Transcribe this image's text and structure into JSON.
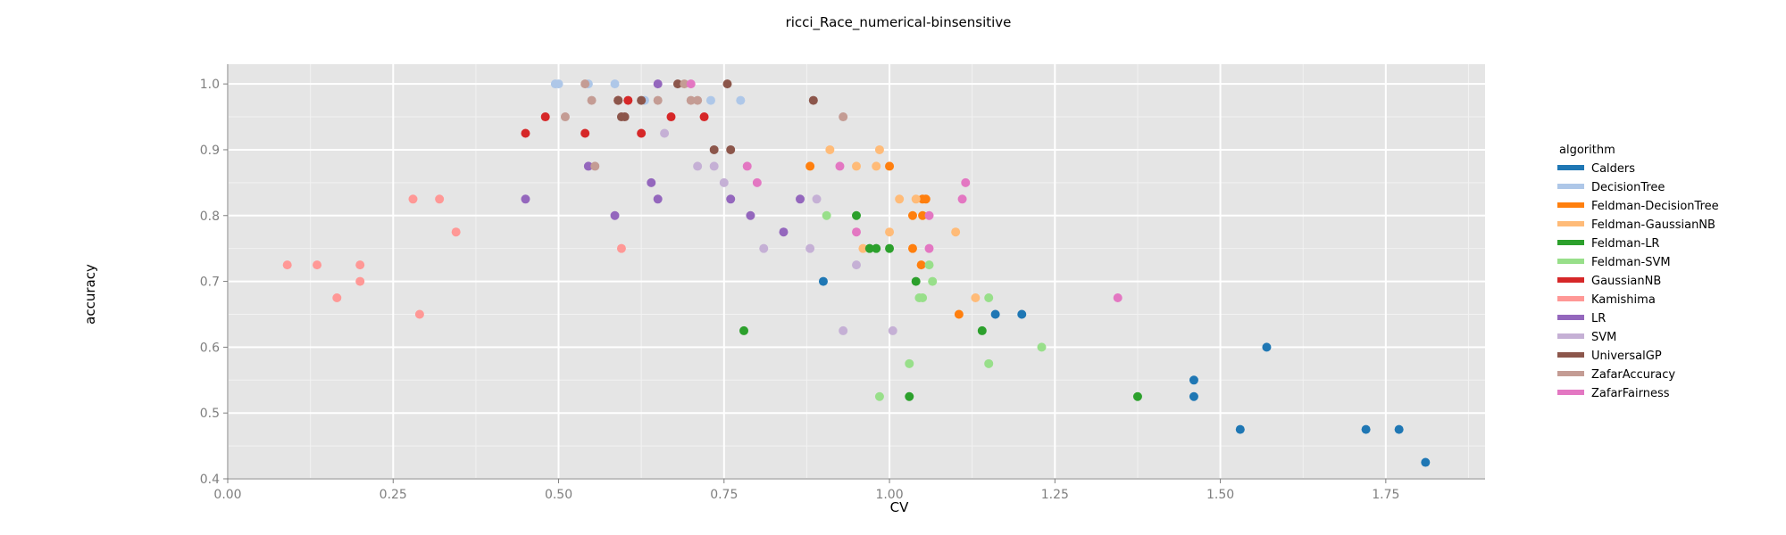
{
  "chart_data": {
    "type": "scatter",
    "title": "ricci_Race_numerical-binsensitive",
    "xlabel": "CV",
    "ylabel": "accuracy",
    "xlim": [
      0.0,
      1.9
    ],
    "ylim": [
      0.4,
      1.03
    ],
    "x_ticks": [
      "0.00",
      "0.25",
      "0.50",
      "0.75",
      "1.00",
      "1.25",
      "1.50",
      "1.75"
    ],
    "y_ticks": [
      "0.4",
      "0.5",
      "0.6",
      "0.7",
      "0.8",
      "0.9",
      "1.0"
    ],
    "grid": true,
    "legend_title": "algorithm",
    "legend_position": "right",
    "series": [
      {
        "name": "Calders",
        "color": "#1f77b4",
        "points": [
          [
            0.9,
            0.7
          ],
          [
            1.16,
            0.65
          ],
          [
            1.2,
            0.65
          ],
          [
            1.46,
            0.55
          ],
          [
            1.46,
            0.525
          ],
          [
            1.53,
            0.475
          ],
          [
            1.57,
            0.6
          ],
          [
            1.72,
            0.475
          ],
          [
            1.77,
            0.475
          ],
          [
            1.81,
            0.425
          ]
        ]
      },
      {
        "name": "DecisionTree",
        "color": "#aec7e8",
        "points": [
          [
            0.495,
            1.0
          ],
          [
            0.5,
            1.0
          ],
          [
            0.585,
            1.0
          ],
          [
            0.63,
            0.975
          ],
          [
            0.73,
            0.975
          ],
          [
            0.775,
            0.975
          ],
          [
            0.545,
            1.0
          ]
        ]
      },
      {
        "name": "Feldman-DecisionTree",
        "color": "#ff7f0e",
        "points": [
          [
            0.88,
            0.875
          ],
          [
            1.0,
            0.875
          ],
          [
            1.035,
            0.8
          ],
          [
            1.035,
            0.75
          ],
          [
            1.05,
            0.825
          ],
          [
            1.055,
            0.825
          ],
          [
            1.05,
            0.8
          ],
          [
            1.048,
            0.725
          ],
          [
            1.105,
            0.65
          ]
        ]
      },
      {
        "name": "Feldman-GaussianNB",
        "color": "#ffbb78",
        "points": [
          [
            0.91,
            0.9
          ],
          [
            0.985,
            0.9
          ],
          [
            0.95,
            0.875
          ],
          [
            0.98,
            0.875
          ],
          [
            1.015,
            0.825
          ],
          [
            1.04,
            0.825
          ],
          [
            1.0,
            0.775
          ],
          [
            0.96,
            0.75
          ],
          [
            1.1,
            0.775
          ],
          [
            1.13,
            0.675
          ]
        ]
      },
      {
        "name": "Feldman-LR",
        "color": "#2ca02c",
        "points": [
          [
            0.78,
            0.625
          ],
          [
            0.95,
            0.8
          ],
          [
            0.97,
            0.75
          ],
          [
            0.98,
            0.75
          ],
          [
            1.0,
            0.75
          ],
          [
            1.04,
            0.7
          ],
          [
            1.03,
            0.525
          ],
          [
            1.14,
            0.625
          ],
          [
            1.375,
            0.525
          ]
        ]
      },
      {
        "name": "Feldman-SVM",
        "color": "#98df8a",
        "points": [
          [
            0.905,
            0.8
          ],
          [
            1.045,
            0.675
          ],
          [
            1.05,
            0.675
          ],
          [
            1.06,
            0.725
          ],
          [
            1.065,
            0.7
          ],
          [
            1.15,
            0.675
          ],
          [
            1.03,
            0.575
          ],
          [
            0.985,
            0.525
          ],
          [
            1.15,
            0.575
          ],
          [
            1.23,
            0.6
          ]
        ]
      },
      {
        "name": "GaussianNB",
        "color": "#d62728",
        "points": [
          [
            0.45,
            0.925
          ],
          [
            0.48,
            0.95
          ],
          [
            0.54,
            0.925
          ],
          [
            0.59,
            0.975
          ],
          [
            0.605,
            0.975
          ],
          [
            0.625,
            0.925
          ],
          [
            0.67,
            0.95
          ],
          [
            0.72,
            0.95
          ]
        ]
      },
      {
        "name": "Kamishima",
        "color": "#ff9896",
        "points": [
          [
            0.09,
            0.725
          ],
          [
            0.135,
            0.725
          ],
          [
            0.2,
            0.725
          ],
          [
            0.165,
            0.675
          ],
          [
            0.2,
            0.7
          ],
          [
            0.28,
            0.825
          ],
          [
            0.32,
            0.825
          ],
          [
            0.345,
            0.775
          ],
          [
            0.29,
            0.65
          ],
          [
            0.595,
            0.75
          ]
        ]
      },
      {
        "name": "LR",
        "color": "#9467bd",
        "points": [
          [
            0.45,
            0.825
          ],
          [
            0.545,
            0.875
          ],
          [
            0.585,
            0.8
          ],
          [
            0.64,
            0.85
          ],
          [
            0.65,
            0.825
          ],
          [
            0.65,
            1.0
          ],
          [
            0.76,
            0.825
          ],
          [
            0.79,
            0.8
          ],
          [
            0.84,
            0.775
          ],
          [
            0.865,
            0.825
          ]
        ]
      },
      {
        "name": "SVM",
        "color": "#c5b0d5",
        "points": [
          [
            0.66,
            0.925
          ],
          [
            0.71,
            0.875
          ],
          [
            0.735,
            0.875
          ],
          [
            0.75,
            0.85
          ],
          [
            0.81,
            0.75
          ],
          [
            0.88,
            0.75
          ],
          [
            0.89,
            0.825
          ],
          [
            0.93,
            0.625
          ],
          [
            0.95,
            0.725
          ],
          [
            1.005,
            0.625
          ]
        ]
      },
      {
        "name": "UniversalGP",
        "color": "#8c564b",
        "points": [
          [
            0.59,
            0.975
          ],
          [
            0.595,
            0.95
          ],
          [
            0.6,
            0.95
          ],
          [
            0.625,
            0.975
          ],
          [
            0.68,
            1.0
          ],
          [
            0.735,
            0.9
          ],
          [
            0.755,
            1.0
          ],
          [
            0.76,
            0.9
          ],
          [
            0.885,
            0.975
          ]
        ]
      },
      {
        "name": "ZafarAccuracy",
        "color": "#c49c94",
        "points": [
          [
            0.51,
            0.95
          ],
          [
            0.54,
            1.0
          ],
          [
            0.55,
            0.975
          ],
          [
            0.555,
            0.875
          ],
          [
            0.65,
            0.975
          ],
          [
            0.69,
            1.0
          ],
          [
            0.7,
            0.975
          ],
          [
            0.71,
            0.975
          ],
          [
            0.93,
            0.95
          ]
        ]
      },
      {
        "name": "ZafarFairness",
        "color": "#e377c2",
        "points": [
          [
            0.7,
            1.0
          ],
          [
            0.785,
            0.875
          ],
          [
            0.8,
            0.85
          ],
          [
            0.925,
            0.875
          ],
          [
            0.95,
            0.775
          ],
          [
            1.06,
            0.8
          ],
          [
            1.06,
            0.75
          ],
          [
            1.11,
            0.825
          ],
          [
            1.115,
            0.85
          ],
          [
            1.345,
            0.675
          ]
        ]
      }
    ]
  }
}
